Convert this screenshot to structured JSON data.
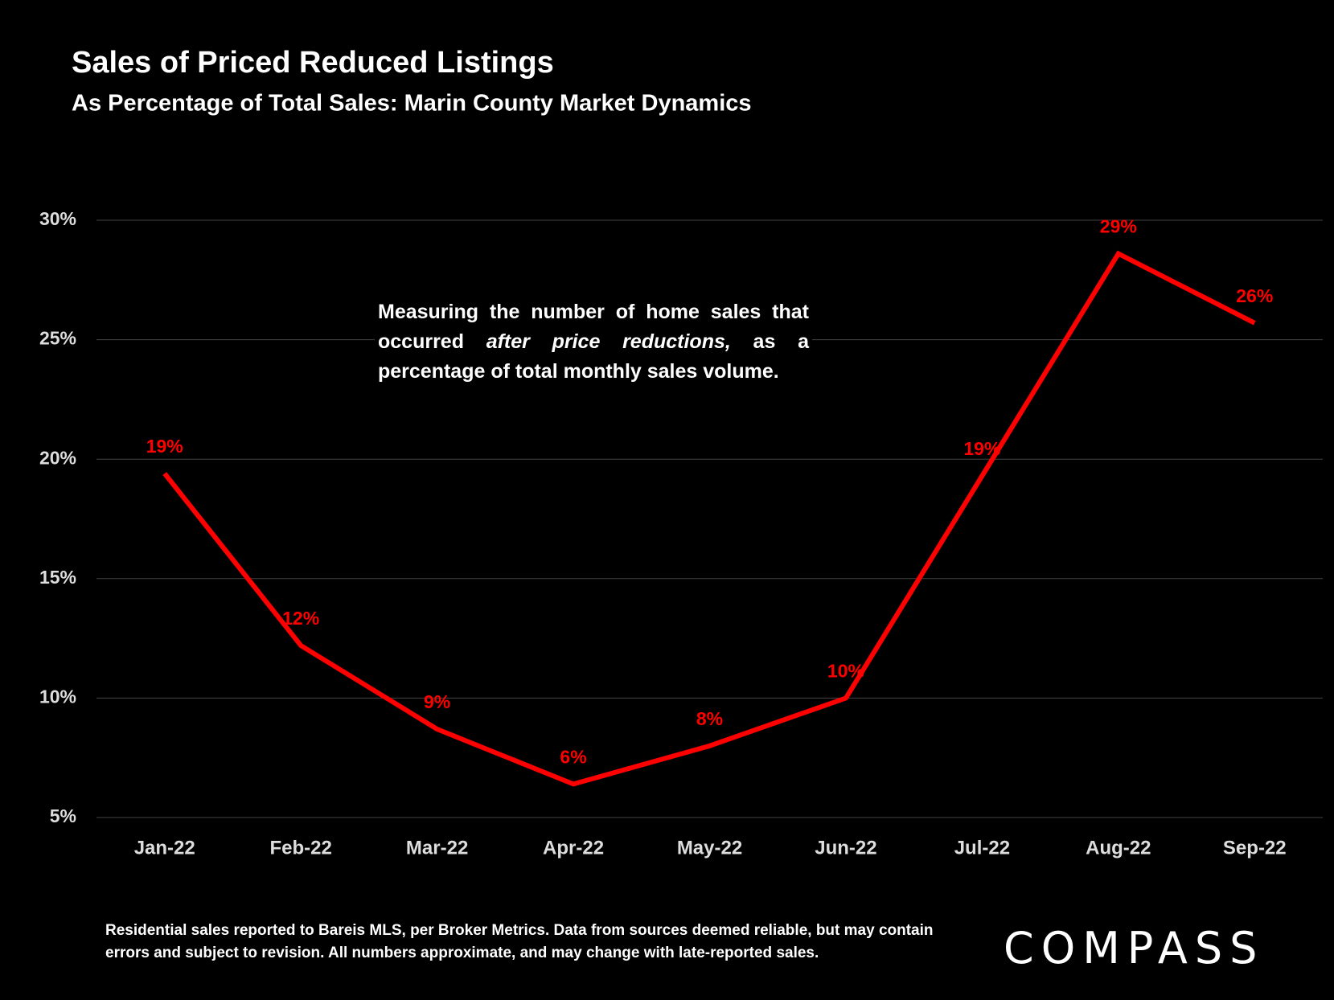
{
  "chart_data": {
    "type": "line",
    "title": "Sales of Priced Reduced Listings",
    "subtitle": "As Percentage of Total Sales:  Marin County Market Dynamics",
    "annotation": {
      "before": "Measuring the number of home sales that occurred",
      "emphasis": "after price reductions,",
      "after": "as a percentage of total monthly sales volume."
    },
    "footnote": "Residential sales reported to  Bareis MLS, per Broker Metrics. Data from sources deemed reliable, but may contain errors and subject to revision. All numbers approximate, and may change with late-reported sales.",
    "logo": "COMPASS",
    "categories": [
      "Jan-22",
      "Feb-22",
      "Mar-22",
      "Apr-22",
      "May-22",
      "Jun-22",
      "Jul-22",
      "Aug-22",
      "Sep-22"
    ],
    "series": [
      {
        "name": "Sales of Priced Reduced Listings",
        "color": "#ff0000",
        "values": [
          19.4,
          12.2,
          8.7,
          6.4,
          8.0,
          10.0,
          19.3,
          28.6,
          25.7
        ],
        "value_labels": [
          "19%",
          "12%",
          "9%",
          "6%",
          "8%",
          "10%",
          "19%",
          "29%",
          "26%"
        ]
      }
    ],
    "ylim": [
      5,
      30
    ],
    "yticks": [
      {
        "value": 5,
        "label": "5%"
      },
      {
        "value": 10,
        "label": "10%"
      },
      {
        "value": 15,
        "label": "15%"
      },
      {
        "value": 20,
        "label": "20%"
      },
      {
        "value": 25,
        "label": "25%"
      },
      {
        "value": 30,
        "label": "30%"
      }
    ],
    "grid": true
  }
}
